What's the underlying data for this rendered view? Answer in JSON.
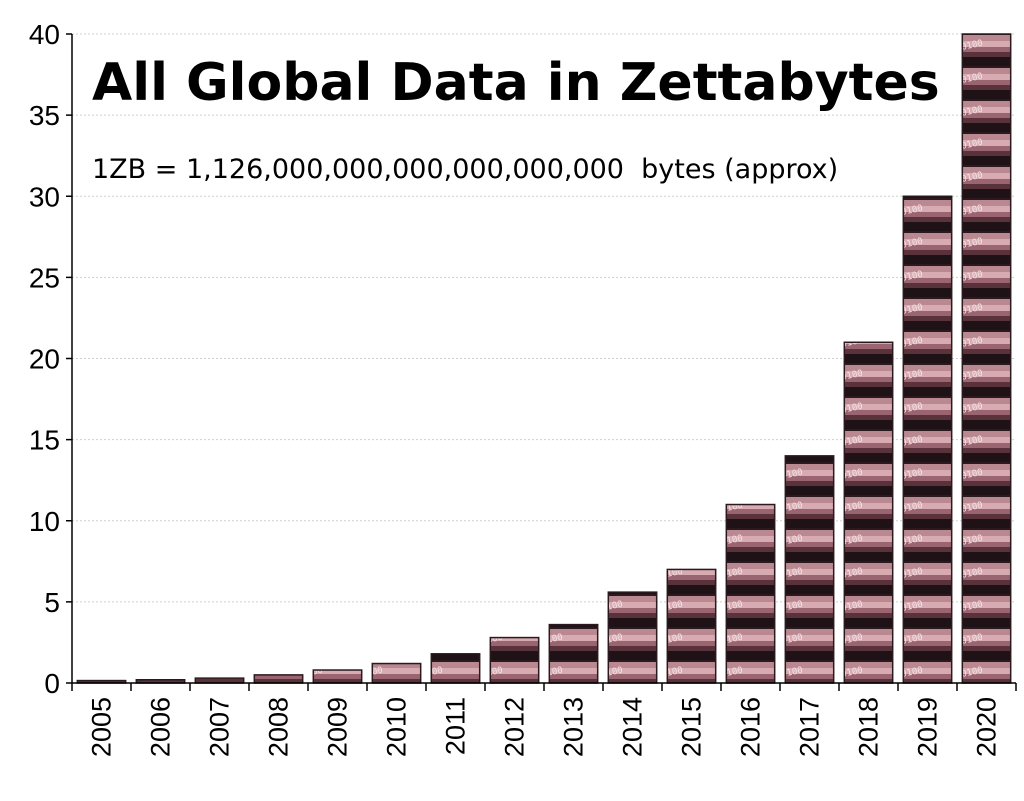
{
  "chart_data": {
    "type": "bar",
    "title": "All Global Data in Zettabytes",
    "subtitle": "1ZB = 1,126,000,000,000,000,000,000  bytes (approx)",
    "xlabel": "",
    "ylabel": "",
    "categories": [
      "2005",
      "2006",
      "2007",
      "2008",
      "2009",
      "2010",
      "2011",
      "2012",
      "2013",
      "2014",
      "2015",
      "2016",
      "2017",
      "2018",
      "2019",
      "2020"
    ],
    "values": [
      0.15,
      0.2,
      0.3,
      0.5,
      0.8,
      1.2,
      1.8,
      2.8,
      3.6,
      5.6,
      7.0,
      11.0,
      14.0,
      21.0,
      30.0,
      40.0
    ],
    "ylim": [
      0,
      40
    ],
    "yticks": [
      0,
      5,
      10,
      15,
      20,
      25,
      30,
      35,
      40
    ],
    "grid": true,
    "legend": "none",
    "colors": {
      "bar_dark": "#2a1a1f",
      "bar_light": "#c9979f",
      "bar_mid": "#7a4a55",
      "text_on_bar": "#e8d6da",
      "grid": "#d0d0d0",
      "axis": "#000000"
    }
  }
}
